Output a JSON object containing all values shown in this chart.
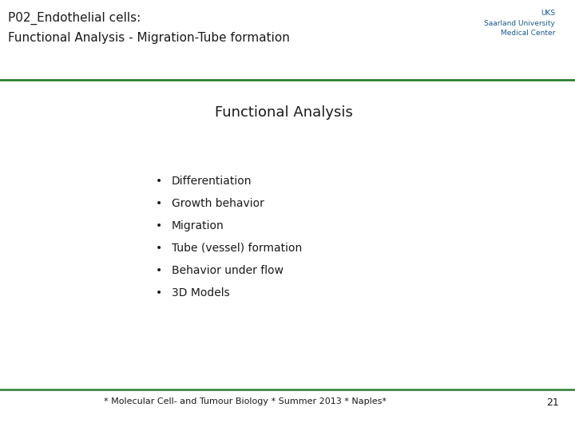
{
  "title_line1": "P02_Endothelial cells:",
  "title_line2": "Functional Analysis - Migration-Tube formation",
  "title_color": "#1a1a1a",
  "header_line_color": "#2e7d32",
  "background_color": "#ffffff",
  "section_title": "Functional Analysis",
  "section_title_color": "#1a1a1a",
  "bullet_items": [
    "Differentiation",
    "Growth behavior",
    "Migration",
    "Tube (vessel) formation",
    "Behavior under flow",
    "3D Models"
  ],
  "bullet_color": "#1a1a1a",
  "footer_text": "* Molecular Cell- and Tumour Biology * Summer 2013 * Naples*",
  "footer_page": "21",
  "footer_color": "#1a1a1a",
  "footer_line_color": "#2e7d32",
  "uks_text": "UKS\nSaarland University\nMedical Center",
  "uks_color": "#1a5a8a"
}
